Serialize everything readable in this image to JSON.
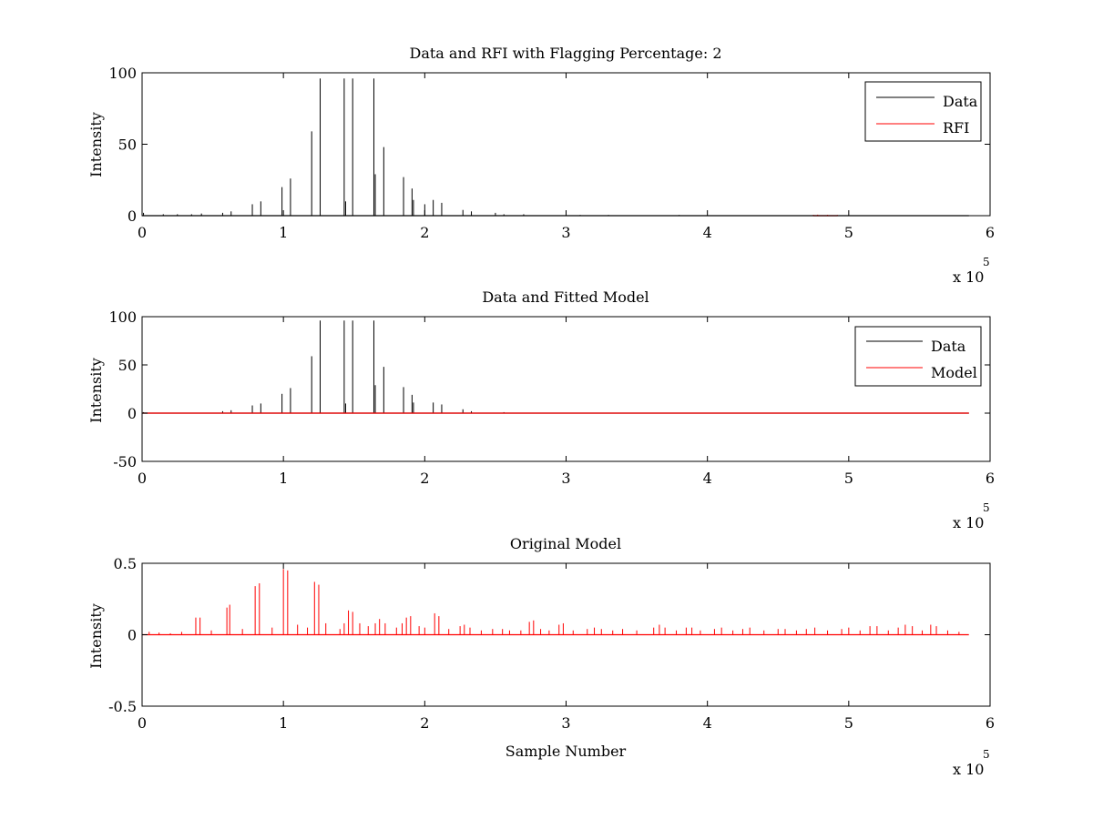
{
  "chart_data": [
    {
      "type": "line",
      "title": "Data and RFI with Flagging Percentage: 2",
      "xlabel": "",
      "ylabel": "Intensity",
      "xlim": [
        0,
        600000
      ],
      "ylim": [
        0,
        100
      ],
      "xticks": [
        "0",
        "1",
        "2",
        "3",
        "4",
        "5",
        "6"
      ],
      "yticks": [
        "0",
        "50",
        "100"
      ],
      "x_multiplier": "x 10",
      "x_exponent": "5",
      "grid": false,
      "legend_position": "top-right",
      "series": [
        {
          "name": "Data",
          "color": "#000000",
          "spikes": [
            [
              1000,
              2
            ],
            [
              15000,
              1
            ],
            [
              25000,
              1
            ],
            [
              35000,
              1
            ],
            [
              42000,
              1.5
            ],
            [
              57000,
              2
            ],
            [
              63000,
              3
            ],
            [
              78000,
              8
            ],
            [
              84000,
              10
            ],
            [
              99000,
              20
            ],
            [
              105000,
              26
            ],
            [
              120000,
              59
            ],
            [
              126000,
              96
            ],
            [
              143000,
              96
            ],
            [
              144000,
              10
            ],
            [
              149000,
              96
            ],
            [
              164000,
              96
            ],
            [
              165000,
              29
            ],
            [
              171000,
              48
            ],
            [
              185000,
              27
            ],
            [
              191000,
              19
            ],
            [
              192000,
              11
            ],
            [
              200000,
              8
            ],
            [
              206000,
              11
            ],
            [
              212000,
              9
            ],
            [
              227000,
              4
            ],
            [
              233000,
              3
            ],
            [
              250000,
              2
            ],
            [
              256000,
              1
            ],
            [
              270000,
              1
            ],
            [
              300000,
              1
            ],
            [
              310000,
              0.5
            ],
            [
              330000,
              0.5
            ],
            [
              380000,
              0.5
            ]
          ]
        },
        {
          "name": "RFI",
          "color": "#ff0000",
          "spikes": [
            [
              475000,
              0.6
            ],
            [
              478000,
              0.7
            ],
            [
              485000,
              0.6
            ],
            [
              492000,
              0.5
            ]
          ]
        }
      ]
    },
    {
      "type": "line",
      "title": "Data and Fitted Model",
      "xlabel": "",
      "ylabel": "Intensity",
      "xlim": [
        0,
        600000
      ],
      "ylim": [
        -50,
        100
      ],
      "xticks": [
        "0",
        "1",
        "2",
        "3",
        "4",
        "5",
        "6"
      ],
      "yticks": [
        "-50",
        "0",
        "50",
        "100"
      ],
      "x_multiplier": "x 10",
      "x_exponent": "5",
      "grid": false,
      "legend_position": "top-right",
      "series": [
        {
          "name": "Data",
          "color": "#000000",
          "spikes": [
            [
              1000,
              1
            ],
            [
              57000,
              2
            ],
            [
              63000,
              3
            ],
            [
              78000,
              8
            ],
            [
              84000,
              10
            ],
            [
              99000,
              20
            ],
            [
              105000,
              26
            ],
            [
              120000,
              59
            ],
            [
              126000,
              96
            ],
            [
              143000,
              96
            ],
            [
              144000,
              10
            ],
            [
              149000,
              96
            ],
            [
              164000,
              96
            ],
            [
              165000,
              29
            ],
            [
              171000,
              48
            ],
            [
              185000,
              27
            ],
            [
              191000,
              19
            ],
            [
              192000,
              11
            ],
            [
              206000,
              11
            ],
            [
              212000,
              9
            ],
            [
              227000,
              4
            ],
            [
              233000,
              2
            ],
            [
              256000,
              1
            ]
          ]
        },
        {
          "name": "Model",
          "color": "#ff0000",
          "spikes": [
            [
              0,
              0
            ],
            [
              585000,
              0
            ]
          ]
        }
      ]
    },
    {
      "type": "line",
      "title": "Original Model",
      "xlabel": "Sample Number",
      "ylabel": "Intensity",
      "xlim": [
        0,
        600000
      ],
      "ylim": [
        -0.5,
        0.5
      ],
      "xticks": [
        "0",
        "1",
        "2",
        "3",
        "4",
        "5",
        "6"
      ],
      "yticks": [
        "-0.5",
        "0",
        "0.5"
      ],
      "x_multiplier": "x 10",
      "x_exponent": "5",
      "grid": false,
      "series": [
        {
          "name": "",
          "color": "#ff0000",
          "spikes": [
            [
              5000,
              0.02
            ],
            [
              12000,
              0.015
            ],
            [
              20000,
              0.01
            ],
            [
              28000,
              0.02
            ],
            [
              38000,
              0.12
            ],
            [
              41000,
              0.12
            ],
            [
              49000,
              0.03
            ],
            [
              60000,
              0.19
            ],
            [
              62000,
              0.21
            ],
            [
              71000,
              0.04
            ],
            [
              80000,
              0.34
            ],
            [
              83000,
              0.36
            ],
            [
              92000,
              0.05
            ],
            [
              100000,
              0.46
            ],
            [
              103000,
              0.45
            ],
            [
              110000,
              0.07
            ],
            [
              117000,
              0.05
            ],
            [
              122000,
              0.37
            ],
            [
              125000,
              0.35
            ],
            [
              130000,
              0.08
            ],
            [
              140000,
              0.04
            ],
            [
              143000,
              0.08
            ],
            [
              146000,
              0.17
            ],
            [
              149000,
              0.16
            ],
            [
              154000,
              0.08
            ],
            [
              160000,
              0.06
            ],
            [
              165000,
              0.08
            ],
            [
              168000,
              0.11
            ],
            [
              172000,
              0.08
            ],
            [
              180000,
              0.05
            ],
            [
              184000,
              0.08
            ],
            [
              187000,
              0.12
            ],
            [
              190000,
              0.13
            ],
            [
              196000,
              0.06
            ],
            [
              200000,
              0.05
            ],
            [
              207000,
              0.15
            ],
            [
              210000,
              0.13
            ],
            [
              217000,
              0.04
            ],
            [
              225000,
              0.06
            ],
            [
              228000,
              0.07
            ],
            [
              232000,
              0.05
            ],
            [
              240000,
              0.03
            ],
            [
              248000,
              0.04
            ],
            [
              255000,
              0.04
            ],
            [
              260000,
              0.03
            ],
            [
              268000,
              0.03
            ],
            [
              274000,
              0.09
            ],
            [
              277000,
              0.1
            ],
            [
              282000,
              0.04
            ],
            [
              288000,
              0.03
            ],
            [
              295000,
              0.07
            ],
            [
              298000,
              0.08
            ],
            [
              305000,
              0.03
            ],
            [
              315000,
              0.04
            ],
            [
              320000,
              0.05
            ],
            [
              325000,
              0.04
            ],
            [
              333000,
              0.03
            ],
            [
              340000,
              0.04
            ],
            [
              350000,
              0.03
            ],
            [
              362000,
              0.05
            ],
            [
              366000,
              0.07
            ],
            [
              370000,
              0.05
            ],
            [
              378000,
              0.03
            ],
            [
              385000,
              0.05
            ],
            [
              389000,
              0.05
            ],
            [
              395000,
              0.03
            ],
            [
              405000,
              0.04
            ],
            [
              410000,
              0.05
            ],
            [
              418000,
              0.03
            ],
            [
              425000,
              0.04
            ],
            [
              430000,
              0.05
            ],
            [
              440000,
              0.03
            ],
            [
              450000,
              0.04
            ],
            [
              455000,
              0.04
            ],
            [
              463000,
              0.03
            ],
            [
              470000,
              0.04
            ],
            [
              476000,
              0.05
            ],
            [
              485000,
              0.03
            ],
            [
              495000,
              0.04
            ],
            [
              500000,
              0.05
            ],
            [
              508000,
              0.03
            ],
            [
              515000,
              0.06
            ],
            [
              520000,
              0.06
            ],
            [
              528000,
              0.03
            ],
            [
              535000,
              0.05
            ],
            [
              540000,
              0.07
            ],
            [
              545000,
              0.06
            ],
            [
              552000,
              0.03
            ],
            [
              558000,
              0.07
            ],
            [
              562000,
              0.06
            ],
            [
              570000,
              0.03
            ],
            [
              578000,
              0.02
            ]
          ]
        }
      ]
    }
  ]
}
